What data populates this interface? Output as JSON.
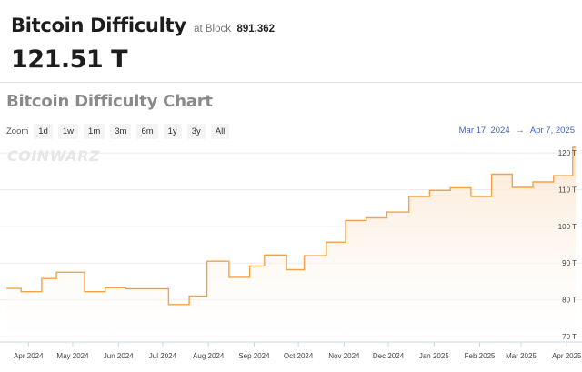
{
  "header": {
    "title": "Bitcoin Difficulty",
    "at_block_label": "at Block",
    "block_number": "891,362",
    "difficulty": "121.51 T"
  },
  "chart_section": {
    "title": "Bitcoin Difficulty Chart",
    "zoom_label": "Zoom",
    "zoom_buttons": [
      "1d",
      "1w",
      "1m",
      "3m",
      "6m",
      "1y",
      "3y",
      "All"
    ],
    "range_start": "Mar 17, 2024",
    "range_arrow": "→",
    "range_end": "Apr 7, 2025",
    "watermark": "COINWARZ"
  },
  "colors": {
    "line": "#f4a245",
    "fill_top": "#fbe6d0",
    "fill_bottom": "#ffffff",
    "accent_link": "#4262c8"
  },
  "chart_data": {
    "type": "area",
    "title": "Bitcoin Difficulty Chart",
    "xlabel": "",
    "ylabel": "",
    "y_unit": "T",
    "xlim": [
      "2024-03-17",
      "2025-04-07"
    ],
    "ylim": [
      68.5,
      122.5
    ],
    "y_ticks": [
      {
        "value": 70,
        "label": "70 T"
      },
      {
        "value": 80,
        "label": "80 T"
      },
      {
        "value": 90,
        "label": "90 T"
      },
      {
        "value": 100,
        "label": "100 T"
      },
      {
        "value": 110,
        "label": "110 T"
      },
      {
        "value": 120,
        "label": "120 T"
      }
    ],
    "x_ticks": [
      {
        "date": "2024-04-01",
        "label": "Apr 2024"
      },
      {
        "date": "2024-05-01",
        "label": "May 2024"
      },
      {
        "date": "2024-06-01",
        "label": "Jun 2024"
      },
      {
        "date": "2024-07-01",
        "label": "Jul 2024"
      },
      {
        "date": "2024-08-01",
        "label": "Aug 2024"
      },
      {
        "date": "2024-09-01",
        "label": "Sep 2024"
      },
      {
        "date": "2024-10-01",
        "label": "Oct 2024"
      },
      {
        "date": "2024-11-01",
        "label": "Nov 2024"
      },
      {
        "date": "2024-12-01",
        "label": "Dec 2024"
      },
      {
        "date": "2025-01-01",
        "label": "Jan 2025"
      },
      {
        "date": "2025-02-01",
        "label": "Feb 2025"
      },
      {
        "date": "2025-03-01",
        "label": "Mar 2025"
      },
      {
        "date": "2025-04-01",
        "label": "Apr 2025"
      }
    ],
    "grid": "horizontal",
    "series": [
      {
        "step": true,
        "points": [
          {
            "date": "2024-03-17",
            "value": 83.1
          },
          {
            "date": "2024-03-27",
            "value": 82.2
          },
          {
            "date": "2024-04-10",
            "value": 85.8
          },
          {
            "date": "2024-04-20",
            "value": 87.5
          },
          {
            "date": "2024-05-09",
            "value": 82.2
          },
          {
            "date": "2024-05-23",
            "value": 83.3
          },
          {
            "date": "2024-06-06",
            "value": 83.0
          },
          {
            "date": "2024-07-05",
            "value": 78.7
          },
          {
            "date": "2024-07-19",
            "value": 81.0
          },
          {
            "date": "2024-07-31",
            "value": 90.5
          },
          {
            "date": "2024-08-15",
            "value": 86.1
          },
          {
            "date": "2024-08-29",
            "value": 89.2
          },
          {
            "date": "2024-09-08",
            "value": 92.2
          },
          {
            "date": "2024-09-23",
            "value": 88.2
          },
          {
            "date": "2024-10-05",
            "value": 92.0
          },
          {
            "date": "2024-10-20",
            "value": 95.7
          },
          {
            "date": "2024-11-02",
            "value": 101.6
          },
          {
            "date": "2024-11-16",
            "value": 102.3
          },
          {
            "date": "2024-11-30",
            "value": 103.9
          },
          {
            "date": "2024-12-15",
            "value": 108.1
          },
          {
            "date": "2024-12-29",
            "value": 109.8
          },
          {
            "date": "2025-01-12",
            "value": 110.5
          },
          {
            "date": "2025-01-26",
            "value": 108.1
          },
          {
            "date": "2025-02-09",
            "value": 114.2
          },
          {
            "date": "2025-02-23",
            "value": 110.6
          },
          {
            "date": "2025-03-09",
            "value": 112.1
          },
          {
            "date": "2025-03-23",
            "value": 113.8
          },
          {
            "date": "2025-04-05",
            "value": 121.5
          },
          {
            "date": "2025-04-07",
            "value": 121.5
          }
        ]
      }
    ]
  }
}
